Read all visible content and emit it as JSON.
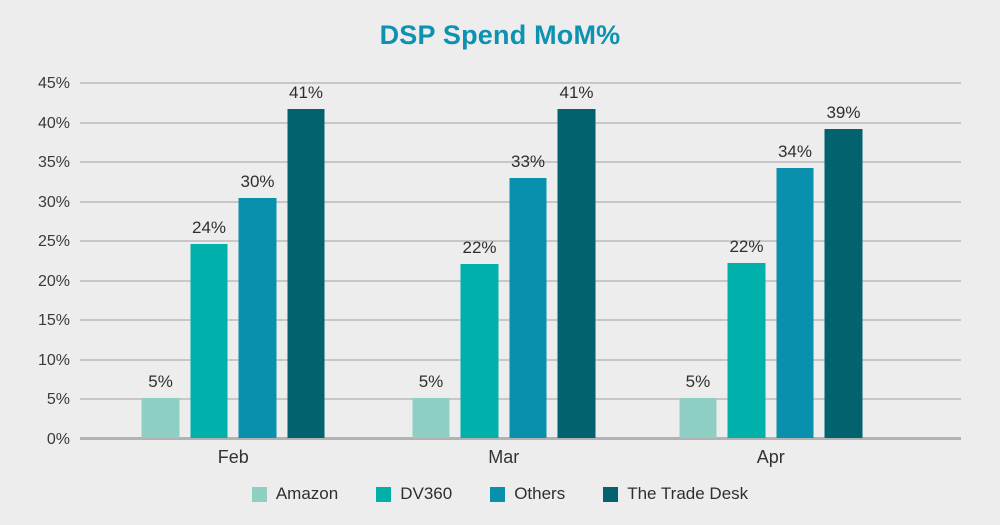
{
  "title": "DSP Spend MoM%",
  "colors": {
    "background": "#EDEDEE",
    "title": "#0E92B1",
    "gridline": "#C7C7C7",
    "baseline": "#B2B2B2",
    "tick_text": "#3A3A3A",
    "label_text": "#2F2F2F",
    "amazon": "#8FCFC3",
    "dv360": "#00B1AB",
    "others": "#0890AC",
    "the_trade_desk": "#02636E"
  },
  "chart_data": {
    "type": "bar",
    "title": "DSP Spend MoM%",
    "categories": [
      "Feb",
      "Mar",
      "Apr"
    ],
    "series": [
      {
        "name": "Amazon",
        "color": "#8FCFC3",
        "values": [
          5,
          5,
          5
        ],
        "labels": [
          "5%",
          "5%",
          "5%"
        ],
        "bar_heights_pct": [
          5.0,
          5.0,
          5.0
        ]
      },
      {
        "name": "DV360",
        "color": "#00B1AB",
        "values": [
          24,
          22,
          22
        ],
        "labels": [
          "24%",
          "22%",
          "22%"
        ],
        "bar_heights_pct": [
          24.5,
          22.0,
          22.1
        ]
      },
      {
        "name": "Others",
        "color": "#0890AC",
        "values": [
          30,
          33,
          34
        ],
        "labels": [
          "30%",
          "33%",
          "34%"
        ],
        "bar_heights_pct": [
          30.4,
          32.9,
          34.1
        ]
      },
      {
        "name": "The Trade Desk",
        "color": "#02636E",
        "values": [
          41,
          41,
          39
        ],
        "labels": [
          "41%",
          "41%",
          "39%"
        ],
        "bar_heights_pct": [
          41.6,
          41.6,
          39.1
        ]
      }
    ],
    "xlabel": "",
    "ylabel": "",
    "ylim": [
      0,
      45
    ],
    "ytick_step": 5,
    "yticks": [
      "0%",
      "5%",
      "10%",
      "15%",
      "20%",
      "25%",
      "30%",
      "35%",
      "40%",
      "45%"
    ],
    "grid": "horizontal",
    "legend_position": "bottom",
    "group_centers_pct": [
      17.4,
      48.1,
      78.4
    ]
  }
}
